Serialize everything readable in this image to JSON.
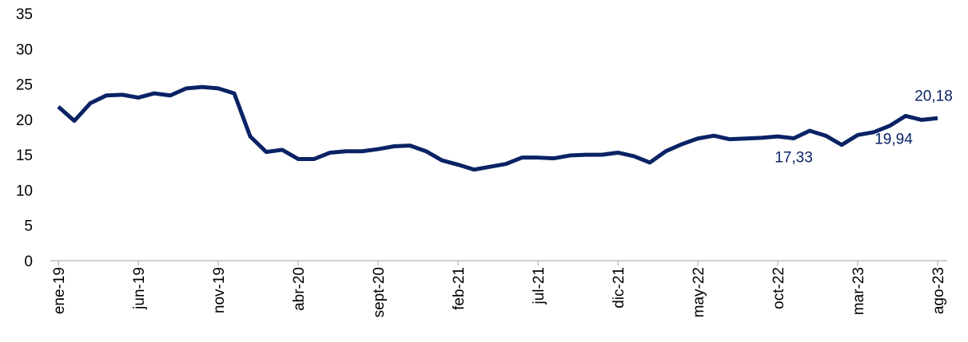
{
  "chart_data": {
    "type": "line",
    "categories": [
      "ene-19",
      null,
      null,
      null,
      null,
      "jun-19",
      null,
      null,
      null,
      null,
      "nov-19",
      null,
      null,
      null,
      null,
      "abr-20",
      null,
      null,
      null,
      null,
      "sept-20",
      null,
      null,
      null,
      null,
      "feb-21",
      null,
      null,
      null,
      null,
      "jul-21",
      null,
      null,
      null,
      null,
      "dic-21",
      null,
      null,
      null,
      null,
      "may-22",
      null,
      null,
      null,
      null,
      "oct-22",
      null,
      null,
      null,
      null,
      "mar-23",
      null,
      null,
      null,
      null,
      "ago-23"
    ],
    "series": [
      {
        "name": null,
        "color": "#0b2265",
        "values": [
          21.8,
          19.8,
          22.3,
          23.4,
          23.5,
          23.1,
          23.7,
          23.4,
          24.4,
          24.6,
          24.4,
          23.7,
          17.6,
          15.4,
          15.7,
          14.4,
          14.4,
          15.3,
          15.5,
          15.5,
          15.8,
          16.2,
          16.3,
          15.5,
          14.2,
          13.6,
          12.9,
          13.3,
          13.7,
          14.6,
          14.6,
          14.5,
          14.9,
          15.0,
          15.0,
          15.3,
          14.8,
          13.9,
          15.5,
          16.5,
          17.3,
          17.7,
          17.2,
          17.3,
          17.4,
          17.6,
          17.33,
          18.4,
          17.7,
          16.4,
          17.8,
          18.2,
          19.1,
          20.5,
          19.94,
          20.18
        ],
        "value_labels": [
          null,
          null,
          null,
          null,
          null,
          null,
          null,
          null,
          null,
          null,
          null,
          null,
          null,
          null,
          null,
          null,
          null,
          null,
          null,
          null,
          null,
          null,
          null,
          null,
          null,
          null,
          null,
          null,
          null,
          null,
          null,
          null,
          null,
          null,
          null,
          null,
          null,
          null,
          null,
          null,
          null,
          null,
          null,
          null,
          null,
          null,
          "17,33",
          null,
          null,
          null,
          null,
          null,
          null,
          null,
          "19,94",
          "20,18"
        ]
      }
    ],
    "ylim": [
      0,
      35
    ],
    "yticks": [
      0,
      5,
      10,
      15,
      20,
      25,
      30,
      35
    ],
    "grid": false
  }
}
